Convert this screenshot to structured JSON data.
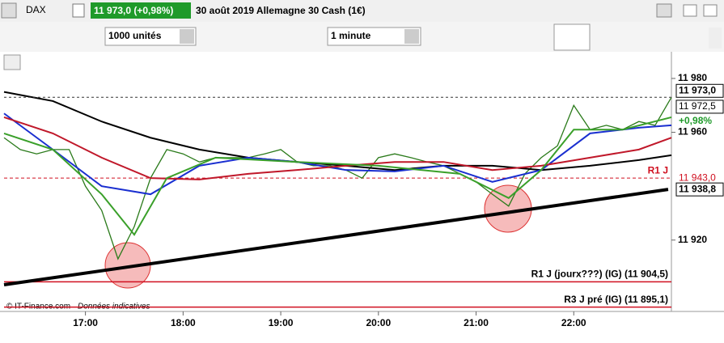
{
  "toolbar": {
    "symbol": "DAX",
    "price": "11 973,0 (+0,98%)",
    "title": "30 août 2019 Allemagne 30 Cash (1€)",
    "quantity": "1000 unités",
    "interval": "1 minute"
  },
  "chart_data": {
    "type": "line",
    "x": [
      970,
      980,
      990,
      1000,
      1010,
      1020,
      1030,
      1040,
      1050,
      1060,
      1070,
      1080,
      1090,
      1100,
      1110,
      1120,
      1130,
      1140,
      1150,
      1160,
      1170,
      1180,
      1190,
      1200,
      1210,
      1220,
      1230,
      1240,
      1250,
      1260,
      1270,
      1280,
      1290,
      1300,
      1310,
      1320,
      1330,
      1340,
      1350,
      1360,
      1370,
      1380
    ],
    "series": [
      {
        "color": "#2a7a1a",
        "values": [
          11958,
          11953.6,
          11952,
          11953.6,
          11953.6,
          11940,
          11931,
          11913,
          11925,
          11943,
          11953.6,
          11952,
          11949,
          11950.6,
          11950.6,
          11950.6,
          11952,
          11953.6,
          11949,
          11947.6,
          11947.6,
          11946,
          11943,
          11950.6,
          11952,
          11950.6,
          11949,
          11947.6,
          11944.6,
          11941.6,
          11937,
          11932.6,
          11944.6,
          11950.6,
          11955,
          11970,
          11961,
          11962.6,
          11961,
          11964,
          11962.6,
          11973
        ]
      },
      {
        "color": "#000000",
        "x": [
          970,
          1000,
          1030,
          1060,
          1090,
          1120,
          1150,
          1180,
          1210,
          1240,
          1270,
          1300,
          1330,
          1360,
          1380
        ],
        "values": [
          11975,
          11971.6,
          11964,
          11958,
          11953.6,
          11950.6,
          11949,
          11947.6,
          11946,
          11947.6,
          11947.6,
          11946,
          11947.6,
          11949.7,
          11951.5
        ]
      },
      {
        "color": "#1a2fd0",
        "x": [
          970,
          1000,
          1030,
          1060,
          1090,
          1120,
          1150,
          1180,
          1210,
          1240,
          1270,
          1300,
          1330,
          1360,
          1380
        ],
        "values": [
          11967,
          11953.6,
          11940,
          11937,
          11947.6,
          11950.6,
          11949,
          11946,
          11945.5,
          11947.6,
          11941.6,
          11946,
          11959.6,
          11961.7,
          11962.6
        ]
      },
      {
        "color": "#c0182a",
        "x": [
          970,
          1000,
          1030,
          1060,
          1090,
          1120,
          1150,
          1180,
          1210,
          1240,
          1270,
          1300,
          1330,
          1360,
          1380
        ],
        "values": [
          11965.6,
          11959.6,
          11950.6,
          11943,
          11942.5,
          11944.6,
          11946,
          11947.6,
          11949,
          11949,
          11946,
          11947.6,
          11950.6,
          11953.6,
          11958
        ]
      },
      {
        "color": "#3aa02a",
        "x": [
          970,
          1000,
          1030,
          1050,
          1070,
          1100,
          1150,
          1200,
          1250,
          1280,
          1300,
          1320,
          1350,
          1380
        ],
        "values": [
          11959.6,
          11953.6,
          11937,
          11922,
          11943,
          11950.6,
          11949,
          11947.6,
          11944.6,
          11935.6,
          11946,
          11961,
          11961,
          11965.6
        ]
      },
      {
        "color": "#000000",
        "x": [
          970,
          1378
        ],
        "values": [
          11903.4,
          11938.8
        ]
      }
    ],
    "levels": [
      {
        "name": "R1 J",
        "value": 11943
      },
      {
        "name": "R1 J (jourx???) (IG) (11 904,5)",
        "value": 11904.5
      },
      {
        "name": "R3 J pré (IG) (11 895,1)",
        "value": 11895.1
      }
    ],
    "price_tags": [
      {
        "value": 11973,
        "label": "11 973,0"
      },
      {
        "value": 11972.5,
        "label": "11 972,5"
      },
      {
        "value": 11943,
        "label": "11 943,0"
      },
      {
        "value": 11938.8,
        "label": "11 938,8"
      }
    ],
    "change": "+0,98%",
    "xlim": [
      970,
      1380
    ],
    "ylim": [
      11893.5,
      11988.7
    ],
    "xticks": [
      {
        "value": 1020,
        "label": "17:00"
      },
      {
        "value": 1080,
        "label": "18:00"
      },
      {
        "value": 1140,
        "label": "19:00"
      },
      {
        "value": 1200,
        "label": "20:00"
      },
      {
        "value": 1260,
        "label": "21:00"
      },
      {
        "value": 1320,
        "label": "22:00"
      }
    ],
    "yticks": [
      {
        "value": 11980,
        "label": "11 980"
      },
      {
        "value": 11960,
        "label": "11 960"
      },
      {
        "value": 11920,
        "label": "11 920"
      }
    ],
    "footer": "© IT-Finance.com",
    "footer_note": "Données indicatives"
  }
}
